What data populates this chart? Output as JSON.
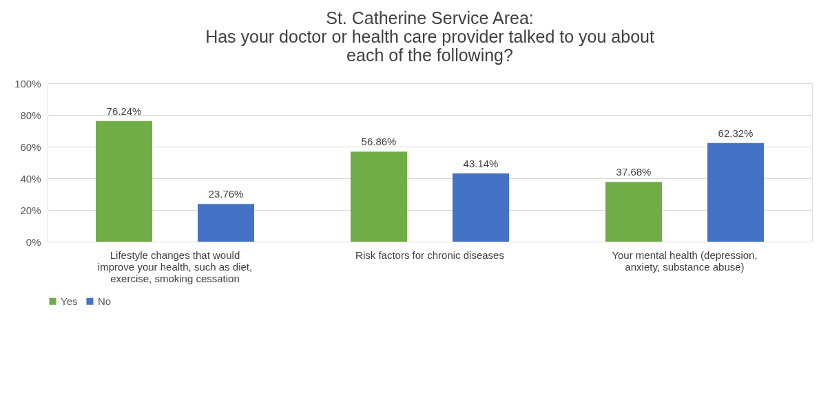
{
  "chart_data": {
    "type": "bar",
    "title": "St. Catherine Service Area:\nHas your doctor or health care provider talked to you about\neach of the following?",
    "categories": [
      "Lifestyle changes that would improve your health, such as diet, exercise, smoking cessation",
      "Risk factors for chronic diseases",
      "Your mental health (depression, anxiety, substance abuse)"
    ],
    "series": [
      {
        "name": "Yes",
        "color": "#70ad47",
        "values": [
          76.24,
          56.86,
          37.68
        ],
        "value_labels": [
          "76.24%",
          "56.86%",
          "37.68%"
        ]
      },
      {
        "name": "No",
        "color": "#4472c4",
        "values": [
          23.76,
          43.14,
          62.32
        ],
        "value_labels": [
          "23.76%",
          "43.14%",
          "62.32%"
        ]
      }
    ],
    "ylim": [
      0,
      100
    ],
    "yticks": [
      {
        "value": 0,
        "label": "0%"
      },
      {
        "value": 20,
        "label": "20%"
      },
      {
        "value": 40,
        "label": "40%"
      },
      {
        "value": 60,
        "label": "60%"
      },
      {
        "value": 80,
        "label": "80%"
      },
      {
        "value": 100,
        "label": "100%"
      }
    ],
    "grid": "y",
    "legend": "bottom"
  }
}
